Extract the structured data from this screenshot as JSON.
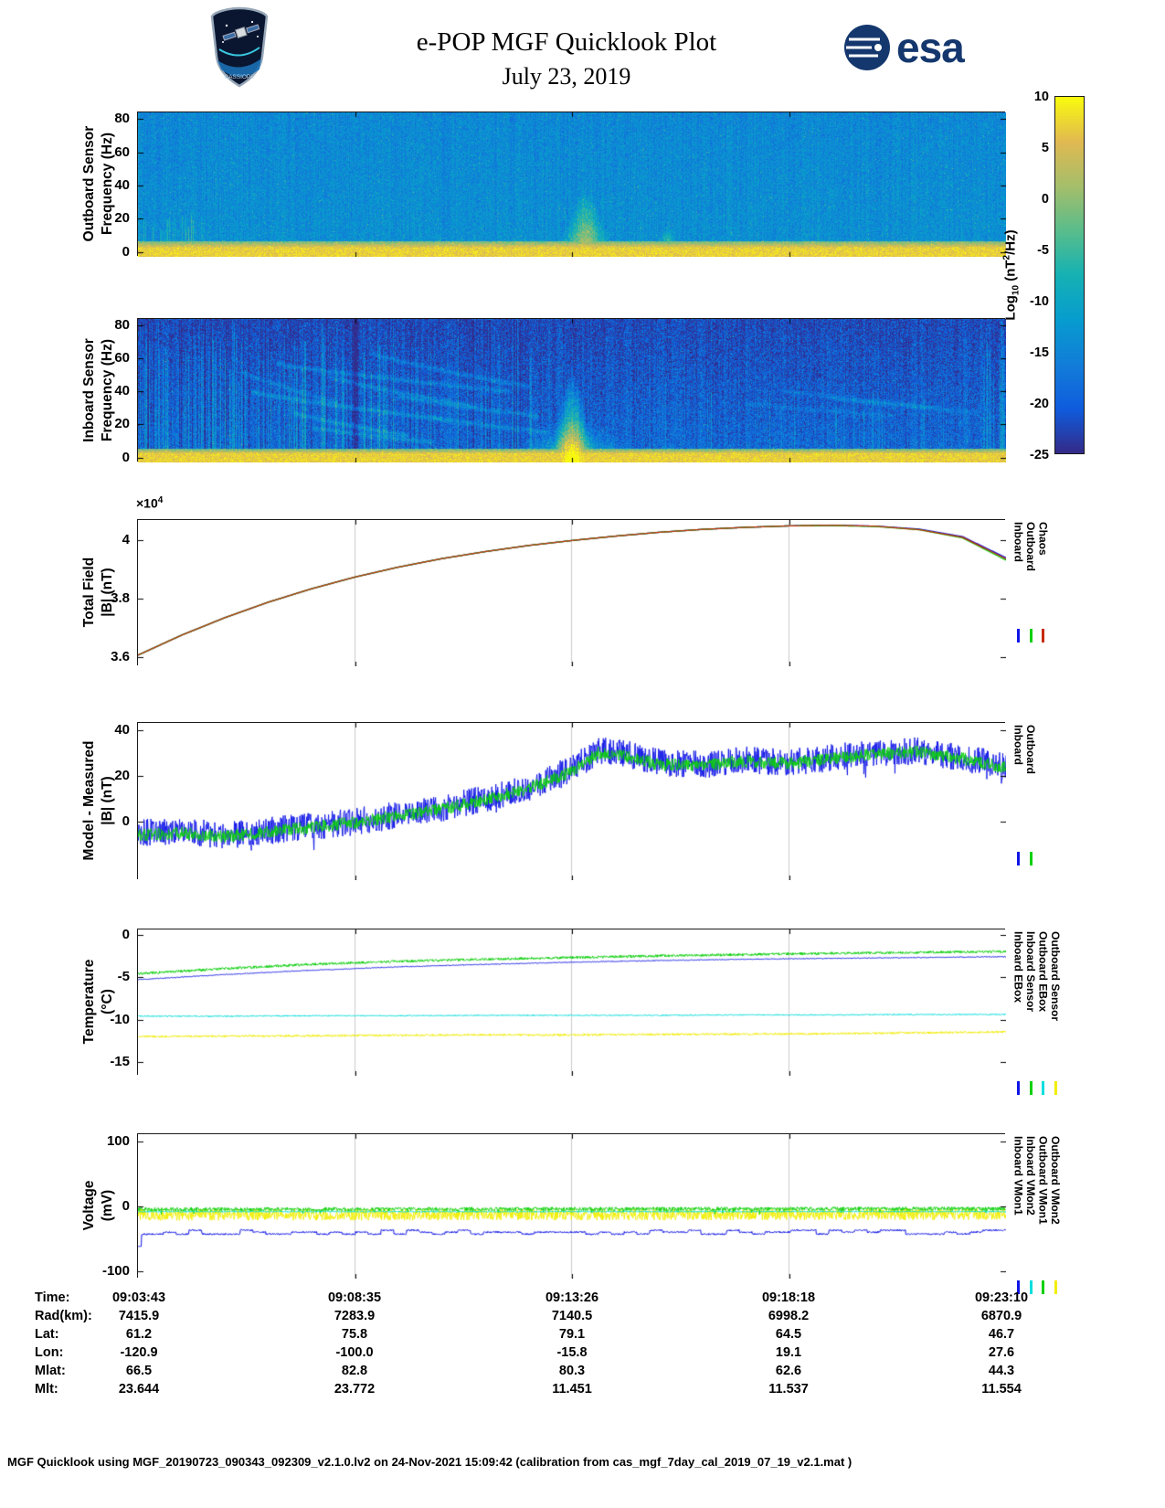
{
  "page": {
    "title_line1": "e-POP MGF Quicklook Plot",
    "title_line2": "July 23, 2019",
    "esa_text": "esa",
    "mission_patch_text": "CASSIOPE",
    "footer": "MGF Quicklook using MGF_20190723_090343_092309_v2.1.0.lv2 on 24-Nov-2021 15:09:42 (calibration from cas_mgf_7day_cal_2019_07_19_v2.1.mat )"
  },
  "colors": {
    "blue": "#0f14e6",
    "green": "#0ad00a",
    "red": "#c62b00",
    "cyan": "#00dede",
    "yellow": "#f2ee00",
    "grid": "#cccccc",
    "esa_navy": "#14376e"
  },
  "colorbar": {
    "min": -25,
    "max": 10,
    "ticks": [
      10,
      5,
      0,
      -5,
      -10,
      -15,
      -20,
      -25
    ],
    "label_parts": {
      "prefix": "Log",
      "sub": "10",
      "mid": " (nT",
      "sup": "2",
      "suffix": "/Hz)"
    }
  },
  "ephemeris": {
    "rows": [
      {
        "label": "Time:",
        "values": [
          "09:03:43",
          "09:08:35",
          "09:13:26",
          "09:18:18",
          "09:23:10"
        ]
      },
      {
        "label": "Rad(km):",
        "values": [
          "7415.9",
          "7283.9",
          "7140.5",
          "6998.2",
          "6870.9"
        ]
      },
      {
        "label": "Lat:",
        "values": [
          "61.2",
          "75.8",
          "79.1",
          "64.5",
          "46.7"
        ]
      },
      {
        "label": "Lon:",
        "values": [
          "-120.9",
          "-100.0",
          "-15.8",
          "19.1",
          "27.6"
        ]
      },
      {
        "label": "Mlat:",
        "values": [
          "66.5",
          "82.8",
          "80.3",
          "62.6",
          "44.3"
        ]
      },
      {
        "label": "Mlt:",
        "values": [
          "23.644",
          "23.772",
          "11.451",
          "11.537",
          "11.554"
        ]
      }
    ]
  },
  "chart_data": [
    {
      "type": "heatmap",
      "name": "outboard_spectrogram",
      "ylabel_line1": "Outboard Sensor",
      "ylabel_line2": "Frequency (Hz)",
      "x_range": [
        "09:03:43",
        "09:23:10"
      ],
      "ylim": [
        -3,
        84
      ],
      "yticks": [
        0,
        20,
        40,
        60,
        80
      ],
      "value_label": "Log10 (nT2/Hz)",
      "value_range": [
        -25,
        10
      ],
      "colormap": "parula",
      "base_level": -13.5,
      "base_noise": 3.5,
      "fgrad": -1.2,
      "col_noise": 1.3,
      "speckle_p": 0.02,
      "speckle_s": 6,
      "band1_hz": 2,
      "band1_level": 7,
      "band2_hz": 6,
      "band2_level": -2,
      "bursts": [
        {
          "x": 0.515,
          "max_hz": 38,
          "strength": 17,
          "width": 0.016
        },
        {
          "x": 0.61,
          "max_hz": 16,
          "strength": 11,
          "width": 0.007
        },
        {
          "x": 0.43,
          "max_hz": 9,
          "strength": 8,
          "width": 0.01
        },
        {
          "x": 0.455,
          "max_hz": 8,
          "strength": 7,
          "width": 0.008
        },
        {
          "x": 0.79,
          "max_hz": 6,
          "strength": 6,
          "width": 0.012
        }
      ],
      "stripe_zones": [
        {
          "x0": 0.005,
          "x1": 0.075,
          "density": 0.35,
          "max_hz": 22,
          "strength": 7
        },
        {
          "x0": 0.33,
          "x1": 0.4,
          "density": 0.1,
          "max_hz": 10,
          "strength": 5
        }
      ],
      "arcs": []
    },
    {
      "type": "heatmap",
      "name": "inboard_spectrogram",
      "ylabel_line1": "Inboard Sensor",
      "ylabel_line2": "Frequency (Hz)",
      "x_range": [
        "09:03:43",
        "09:23:10"
      ],
      "ylim": [
        -3,
        84
      ],
      "yticks": [
        0,
        20,
        40,
        60,
        80
      ],
      "value_label": "Log10 (nT2/Hz)",
      "value_range": [
        -25,
        10
      ],
      "colormap": "parula",
      "base_level": -18.5,
      "base_noise": 4.5,
      "fgrad": -3.5,
      "col_noise": 1.8,
      "speckle_p": 0.012,
      "speckle_s": 7,
      "band1_hz": 2,
      "band1_level": 7,
      "band2_hz": 5,
      "band2_level": -3,
      "bursts": [
        {
          "x": 0.5,
          "max_hz": 52,
          "strength": 24,
          "width": 0.013
        },
        {
          "x": 0.5,
          "max_hz": 24,
          "strength": 9,
          "width": 0.045
        },
        {
          "x": 0.61,
          "max_hz": 10,
          "strength": 7,
          "width": 0.008
        }
      ],
      "stripe_zones": [
        {
          "x0": 0.0,
          "x1": 0.1,
          "density": 0.3,
          "max_hz": 84,
          "strength": 6,
          "dark": 0.18
        },
        {
          "x0": 0.1,
          "x1": 0.3,
          "density": 0.22,
          "max_hz": 84,
          "strength": 7,
          "dark": 0.18
        },
        {
          "x0": 0.3,
          "x1": 0.46,
          "density": 0.1,
          "max_hz": 84,
          "strength": 5,
          "dark": 0.12
        },
        {
          "x0": 0.6,
          "x1": 0.75,
          "density": 0.05,
          "max_hz": 50,
          "strength": 4
        },
        {
          "x0": 0.75,
          "x1": 0.96,
          "density": 0.12,
          "max_hz": 45,
          "strength": 4
        },
        {
          "x0": 0.965,
          "x1": 1.0,
          "density": 0.45,
          "max_hz": 84,
          "strength": 6
        }
      ],
      "arcs": [
        [
          0.13,
          0.35,
          40,
          23,
          6
        ],
        [
          0.16,
          0.43,
          57,
          40,
          5
        ],
        [
          0.18,
          0.31,
          27,
          13,
          6
        ],
        [
          0.22,
          0.39,
          49,
          31,
          5
        ],
        [
          0.27,
          0.45,
          63,
          43,
          5
        ],
        [
          0.3,
          0.46,
          37,
          25,
          5
        ],
        [
          0.12,
          0.23,
          52,
          33,
          4
        ],
        [
          0.34,
          0.47,
          24,
          15,
          5
        ],
        [
          0.2,
          0.34,
          18,
          9,
          5
        ],
        [
          0.74,
          0.92,
          41,
          30,
          3
        ],
        [
          0.8,
          0.97,
          36,
          27,
          3
        ],
        [
          0.7,
          0.87,
          33,
          25,
          2.5
        ]
      ]
    },
    {
      "type": "line",
      "name": "total_field",
      "ylabel_line1": "Total Field",
      "ylabel_line2": "|B| (nT)",
      "scale_label": {
        "times": "×10",
        "exp": "4"
      },
      "x_range": [
        "09:03:43",
        "09:23:10"
      ],
      "ylim": [
        3.569,
        4.069
      ],
      "yticks": [
        3.6,
        3.8,
        4
      ],
      "ytick_labels": [
        "3.6",
        "3.8",
        "4"
      ],
      "grid_x": [
        0.25,
        0.5,
        0.75
      ],
      "legend": [
        {
          "label": "Inboard",
          "color": "blue"
        },
        {
          "label": "Outboard",
          "color": "green"
        },
        {
          "label": "Chaos",
          "color": "red"
        }
      ],
      "series": [
        {
          "name": "Inboard",
          "color": "blue",
          "width": 1.4,
          "noise": 0,
          "x": [
            0,
            0.05,
            0.1,
            0.15,
            0.2,
            0.25,
            0.3,
            0.35,
            0.4,
            0.45,
            0.5,
            0.55,
            0.6,
            0.65,
            0.7,
            0.75,
            0.8,
            0.85,
            0.9,
            0.95,
            1
          ],
          "y": [
            3.607,
            3.675,
            3.735,
            3.788,
            3.834,
            3.874,
            3.908,
            3.937,
            3.961,
            3.982,
            3.999,
            4.014,
            4.027,
            4.037,
            4.044,
            4.049,
            4.051,
            4.048,
            4.038,
            4.012,
            3.94
          ]
        },
        {
          "name": "Outboard",
          "color": "green",
          "width": 1.4,
          "noise": 0,
          "x": [
            0,
            0.05,
            0.1,
            0.15,
            0.2,
            0.25,
            0.3,
            0.35,
            0.4,
            0.45,
            0.5,
            0.55,
            0.6,
            0.65,
            0.7,
            0.75,
            0.8,
            0.85,
            0.9,
            0.95,
            1
          ],
          "y": [
            3.607,
            3.675,
            3.735,
            3.788,
            3.834,
            3.874,
            3.908,
            3.937,
            3.961,
            3.982,
            3.999,
            4.014,
            4.027,
            4.037,
            4.044,
            4.049,
            4.05,
            4.047,
            4.036,
            4.008,
            3.932
          ]
        },
        {
          "name": "Chaos",
          "color": "red",
          "width": 1.2,
          "noise": 0,
          "x": [
            0,
            0.05,
            0.1,
            0.15,
            0.2,
            0.25,
            0.3,
            0.35,
            0.4,
            0.45,
            0.5,
            0.55,
            0.6,
            0.65,
            0.7,
            0.75,
            0.8,
            0.85,
            0.9,
            0.95,
            1
          ],
          "y": [
            3.607,
            3.675,
            3.735,
            3.788,
            3.834,
            3.874,
            3.908,
            3.937,
            3.961,
            3.982,
            3.999,
            4.014,
            4.027,
            4.037,
            4.044,
            4.049,
            4.051,
            4.048,
            4.036,
            4.01,
            3.936
          ]
        }
      ]
    },
    {
      "type": "line",
      "name": "model_minus_measured",
      "ylabel_line1": "Model - Measured",
      "ylabel_line2": "|B| (nT)",
      "x_range": [
        "09:03:43",
        "09:23:10"
      ],
      "ylim": [
        -25.6,
        43.2
      ],
      "yticks": [
        0,
        20,
        40
      ],
      "grid_x": [
        0.25,
        0.5,
        0.75
      ],
      "legend": [
        {
          "label": "Inboard",
          "color": "blue"
        },
        {
          "label": "Outboard",
          "color": "green"
        }
      ],
      "series": [
        {
          "name": "Inboard",
          "color": "blue",
          "width": 0.9,
          "noise": 6,
          "spike_p": 0.02,
          "spike_amp": -7,
          "x": [
            0,
            0.05,
            0.1,
            0.15,
            0.2,
            0.25,
            0.3,
            0.35,
            0.4,
            0.45,
            0.5,
            0.53,
            0.56,
            0.6,
            0.65,
            0.7,
            0.75,
            0.8,
            0.85,
            0.9,
            0.95,
            1
          ],
          "y": [
            -5,
            -4,
            -6,
            -4,
            -2,
            0,
            3,
            6,
            10,
            15,
            23,
            31,
            30,
            26,
            25,
            27,
            26,
            28,
            30,
            31,
            28,
            24
          ]
        },
        {
          "name": "Outboard",
          "color": "green",
          "width": 0.9,
          "noise": 2.8,
          "x": [
            0,
            0.05,
            0.1,
            0.15,
            0.2,
            0.25,
            0.3,
            0.35,
            0.4,
            0.45,
            0.5,
            0.53,
            0.56,
            0.6,
            0.65,
            0.7,
            0.75,
            0.8,
            0.85,
            0.9,
            0.95,
            1
          ],
          "y": [
            -6,
            -5,
            -6.5,
            -4.5,
            -2.5,
            -0.5,
            2.5,
            5.5,
            9.5,
            14.5,
            22,
            30,
            29,
            25,
            24.5,
            26.5,
            25.5,
            27.5,
            29.5,
            30.5,
            27.5,
            23.5
          ]
        }
      ]
    },
    {
      "type": "line",
      "name": "temperature",
      "ylabel_line1": "Temperature",
      "ylabel_line2": "(°C)",
      "x_range": [
        "09:03:43",
        "09:23:10"
      ],
      "ylim": [
        -16.6,
        0.6
      ],
      "yticks": [
        0,
        -5,
        -10,
        -15
      ],
      "grid_x": [
        0.25,
        0.5,
        0.75
      ],
      "legend": [
        {
          "label": "Inboard EBox",
          "color": "blue"
        },
        {
          "label": "Inboard Sensor",
          "color": "green"
        },
        {
          "label": "Outboard EBox",
          "color": "cyan"
        },
        {
          "label": "Outboard Sensor",
          "color": "yellow"
        }
      ],
      "series": [
        {
          "name": "Outboard EBox",
          "color": "cyan",
          "width": 1,
          "noise": 0.07,
          "x": [
            0,
            0.1,
            0.2,
            0.3,
            0.4,
            0.5,
            0.6,
            0.7,
            0.8,
            0.9,
            1
          ],
          "y": [
            -9.6,
            -9.6,
            -9.55,
            -9.55,
            -9.5,
            -9.5,
            -9.5,
            -9.45,
            -9.45,
            -9.4,
            -9.4
          ]
        },
        {
          "name": "Outboard Sensor",
          "color": "yellow",
          "width": 1,
          "noise": 0.12,
          "x": [
            0,
            0.1,
            0.2,
            0.3,
            0.4,
            0.5,
            0.6,
            0.7,
            0.8,
            0.9,
            1
          ],
          "y": [
            -12.0,
            -11.95,
            -11.9,
            -11.85,
            -11.8,
            -11.8,
            -11.75,
            -11.7,
            -11.65,
            -11.55,
            -11.45
          ]
        },
        {
          "name": "Inboard EBox",
          "color": "blue",
          "width": 1,
          "noise": 0.05,
          "x": [
            0,
            0.1,
            0.2,
            0.3,
            0.4,
            0.5,
            0.6,
            0.7,
            0.8,
            0.9,
            1
          ],
          "y": [
            -5.3,
            -4.7,
            -4.2,
            -3.8,
            -3.5,
            -3.25,
            -3.05,
            -2.9,
            -2.8,
            -2.7,
            -2.6
          ]
        },
        {
          "name": "Inboard Sensor",
          "color": "green",
          "width": 1,
          "noise": 0.15,
          "x": [
            0,
            0.1,
            0.2,
            0.3,
            0.4,
            0.5,
            0.6,
            0.7,
            0.8,
            0.9,
            1
          ],
          "y": [
            -4.6,
            -4.0,
            -3.5,
            -3.15,
            -2.9,
            -2.7,
            -2.5,
            -2.35,
            -2.2,
            -2.1,
            -2.0
          ]
        }
      ]
    },
    {
      "type": "line",
      "name": "voltage",
      "ylabel_line1": "Voltage",
      "ylabel_line2": "(mV)",
      "x_range": [
        "09:03:43",
        "09:23:10"
      ],
      "ylim": [
        -112,
        112
      ],
      "yticks": [
        100,
        0,
        -100
      ],
      "grid_x": [
        0.25,
        0.5,
        0.75
      ],
      "legend": [
        {
          "label": "Inboard VMon1",
          "color": "blue"
        },
        {
          "label": "Inboard VMon2",
          "color": "cyan"
        },
        {
          "label": "Outboard VMon1",
          "color": "green"
        },
        {
          "label": "Outboard VMon2",
          "color": "yellow"
        }
      ],
      "series": [
        {
          "name": "Outboard VMon2",
          "color": "yellow",
          "width": 0.9,
          "noise": 9,
          "x": [
            0,
            1
          ],
          "y": [
            -13,
            -12
          ]
        },
        {
          "name": "Outboard VMon1",
          "color": "green",
          "width": 0.9,
          "noise": 3,
          "spike_p": 0.04,
          "spike_amp": -6,
          "x": [
            0,
            1
          ],
          "y": [
            -4.5,
            -3.5
          ]
        },
        {
          "name": "Inboard VMon2",
          "color": "cyan",
          "width": 1,
          "noise": 0.9,
          "x": [
            0,
            1
          ],
          "y": [
            -8.2,
            -8.0
          ]
        },
        {
          "name": "Inboard VMon1",
          "color": "blue",
          "width": 1,
          "noise": 1.2,
          "step": 28,
          "quant": 3,
          "start_dip": -62,
          "x": [
            0,
            1
          ],
          "y": [
            -40,
            -40
          ]
        }
      ]
    }
  ]
}
